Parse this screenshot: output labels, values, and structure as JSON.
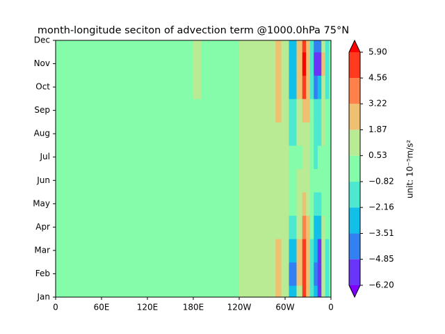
{
  "chart_data": {
    "type": "contour",
    "title": "month-longitude seciton of advection term @1000.0hPa 75°N",
    "x": [
      0,
      175,
      185,
      195,
      285,
      290,
      300,
      310,
      320,
      325,
      330,
      335,
      340,
      345,
      350,
      355,
      360
    ],
    "categories": [
      "Jan",
      "Feb",
      "Mar",
      "Apr",
      "May",
      "Jun",
      "Jul",
      "Aug",
      "Sep",
      "Oct",
      "Nov",
      "Dec"
    ],
    "z": [
      [
        0,
        0,
        0,
        0,
        0.8,
        2,
        0.8,
        -3,
        1,
        5,
        2,
        -1,
        -3,
        -5,
        1,
        -1,
        0
      ],
      [
        0,
        0,
        0,
        0,
        0.8,
        2.5,
        1,
        -4,
        2,
        5.5,
        2,
        -1,
        -4,
        -5.5,
        1.5,
        -1,
        0
      ],
      [
        0,
        0,
        0,
        0,
        0.8,
        2,
        1,
        -3,
        2,
        5,
        2,
        -1,
        -3.5,
        -5,
        1,
        -1,
        0
      ],
      [
        0,
        0,
        0,
        0,
        1,
        1,
        0.8,
        -1.5,
        1.5,
        4,
        2,
        0,
        -2.5,
        -3,
        0.8,
        -0.5,
        0
      ],
      [
        0,
        0,
        0,
        0,
        1,
        1,
        0.6,
        -0.5,
        1,
        2.5,
        1,
        0,
        -1,
        -1,
        0.5,
        0,
        0
      ],
      [
        0,
        0,
        0,
        0,
        0.8,
        0.8,
        0.6,
        0,
        0.6,
        1,
        0.6,
        0,
        -0.5,
        0,
        0,
        0,
        0
      ],
      [
        0,
        0,
        0,
        0,
        1,
        1,
        0.6,
        0,
        0.5,
        1,
        0.6,
        0,
        -0.9,
        0,
        0,
        0,
        0
      ],
      [
        0,
        0,
        0,
        0,
        1,
        1.2,
        0.6,
        -0.9,
        1,
        1.5,
        1,
        0,
        -1.5,
        -1,
        0.6,
        0,
        0
      ],
      [
        0,
        0,
        0,
        0,
        0.8,
        2,
        0.8,
        -1.5,
        1.5,
        3,
        2,
        -0.5,
        -2,
        -1.5,
        1,
        0,
        0
      ],
      [
        0,
        0,
        1,
        0,
        0.8,
        2.5,
        0.8,
        -3,
        2,
        5,
        3,
        -1,
        -4,
        -3.5,
        1.5,
        -1,
        0
      ],
      [
        0,
        0,
        1,
        0,
        1,
        2.5,
        0.8,
        -3.5,
        2,
        6,
        3,
        -1,
        -5,
        -5,
        2,
        -1,
        0
      ],
      [
        0,
        0,
        1,
        0,
        1,
        2,
        0.8,
        -3,
        2,
        5.5,
        2,
        -1,
        -4.5,
        -4,
        1.5,
        -1,
        0
      ]
    ],
    "xlim": [
      0,
      360
    ],
    "xticks": [
      0,
      {
        "value": 60,
        "label": "60E"
      },
      {
        "value": 120,
        "label": "120E"
      },
      {
        "value": 180,
        "label": "180E"
      },
      {
        "value": 240,
        "label": "120W"
      },
      {
        "value": 300,
        "label": "60W"
      },
      {
        "value": 360,
        "label": "0"
      }
    ],
    "levels": [
      {
        "value": -6.2,
        "label": "−6.20"
      },
      {
        "value": -4.85,
        "label": "−4.85"
      },
      {
        "value": -3.51,
        "label": "−3.51"
      },
      {
        "value": -2.16,
        "label": "−2.16"
      },
      {
        "value": -0.82,
        "label": "−0.82"
      },
      {
        "value": 0.53,
        "label": "0.53"
      },
      {
        "value": 1.87,
        "label": "1.87"
      },
      {
        "value": 3.22,
        "label": "3.22"
      },
      {
        "value": 4.56,
        "label": "4.56"
      },
      {
        "value": 5.9,
        "label": "5.90"
      }
    ],
    "colors": [
      "#7f00ff",
      "#6a35f9",
      "#3380f2",
      "#12bfe8",
      "#4de8d0",
      "#84fcaa",
      "#b8eb93",
      "#efc072",
      "#ff8048",
      "#ff3a1e",
      "#ff0000"
    ],
    "colorbar_label": "unit: 10⁻⁵m/s²"
  }
}
